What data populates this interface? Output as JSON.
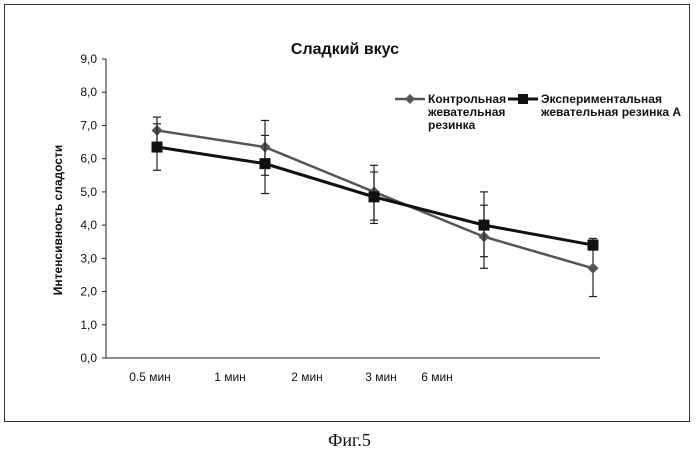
{
  "figure_caption": "Фиг.5",
  "chart_data": {
    "type": "line",
    "title": "Сладкий вкус",
    "xlabel": "",
    "ylabel": "Интенсивность сладости",
    "categories": [
      "0.5 мин",
      "1 мин",
      "2 мин",
      "3 мин",
      "6 мин"
    ],
    "ylim": [
      0,
      9
    ],
    "yticks": [
      "0,0",
      "1,0",
      "2,0",
      "3,0",
      "4,0",
      "5,0",
      "6,0",
      "7,0",
      "8,0",
      "9,0"
    ],
    "legend_position": "top-right",
    "grid": false,
    "series": [
      {
        "name": "Контрольная жевательная резинка",
        "legend_lines": [
          "Контрольная",
          "жевательная",
          "резинка"
        ],
        "marker": "diamond",
        "color": "#555555",
        "x": [
          1,
          2,
          3,
          4,
          5
        ],
        "values": [
          6.85,
          6.35,
          5.0,
          3.65,
          2.7
        ],
        "error_low": [
          6.25,
          5.5,
          4.15,
          2.7,
          1.85
        ],
        "error_high": [
          7.25,
          7.15,
          5.8,
          4.6,
          3.6
        ]
      },
      {
        "name": "Экспериментальная жевательная резинка A",
        "legend_lines": [
          "Экспериментальная",
          "жевательная резинка A"
        ],
        "marker": "square",
        "color": "#111111",
        "x": [
          1,
          2,
          3,
          4,
          5
        ],
        "values": [
          6.35,
          5.85,
          4.85,
          4.0,
          3.4
        ],
        "error_low": [
          5.65,
          4.95,
          4.05,
          3.05,
          3.25
        ],
        "error_high": [
          7.05,
          6.7,
          5.6,
          5.0,
          3.55
        ]
      }
    ]
  }
}
